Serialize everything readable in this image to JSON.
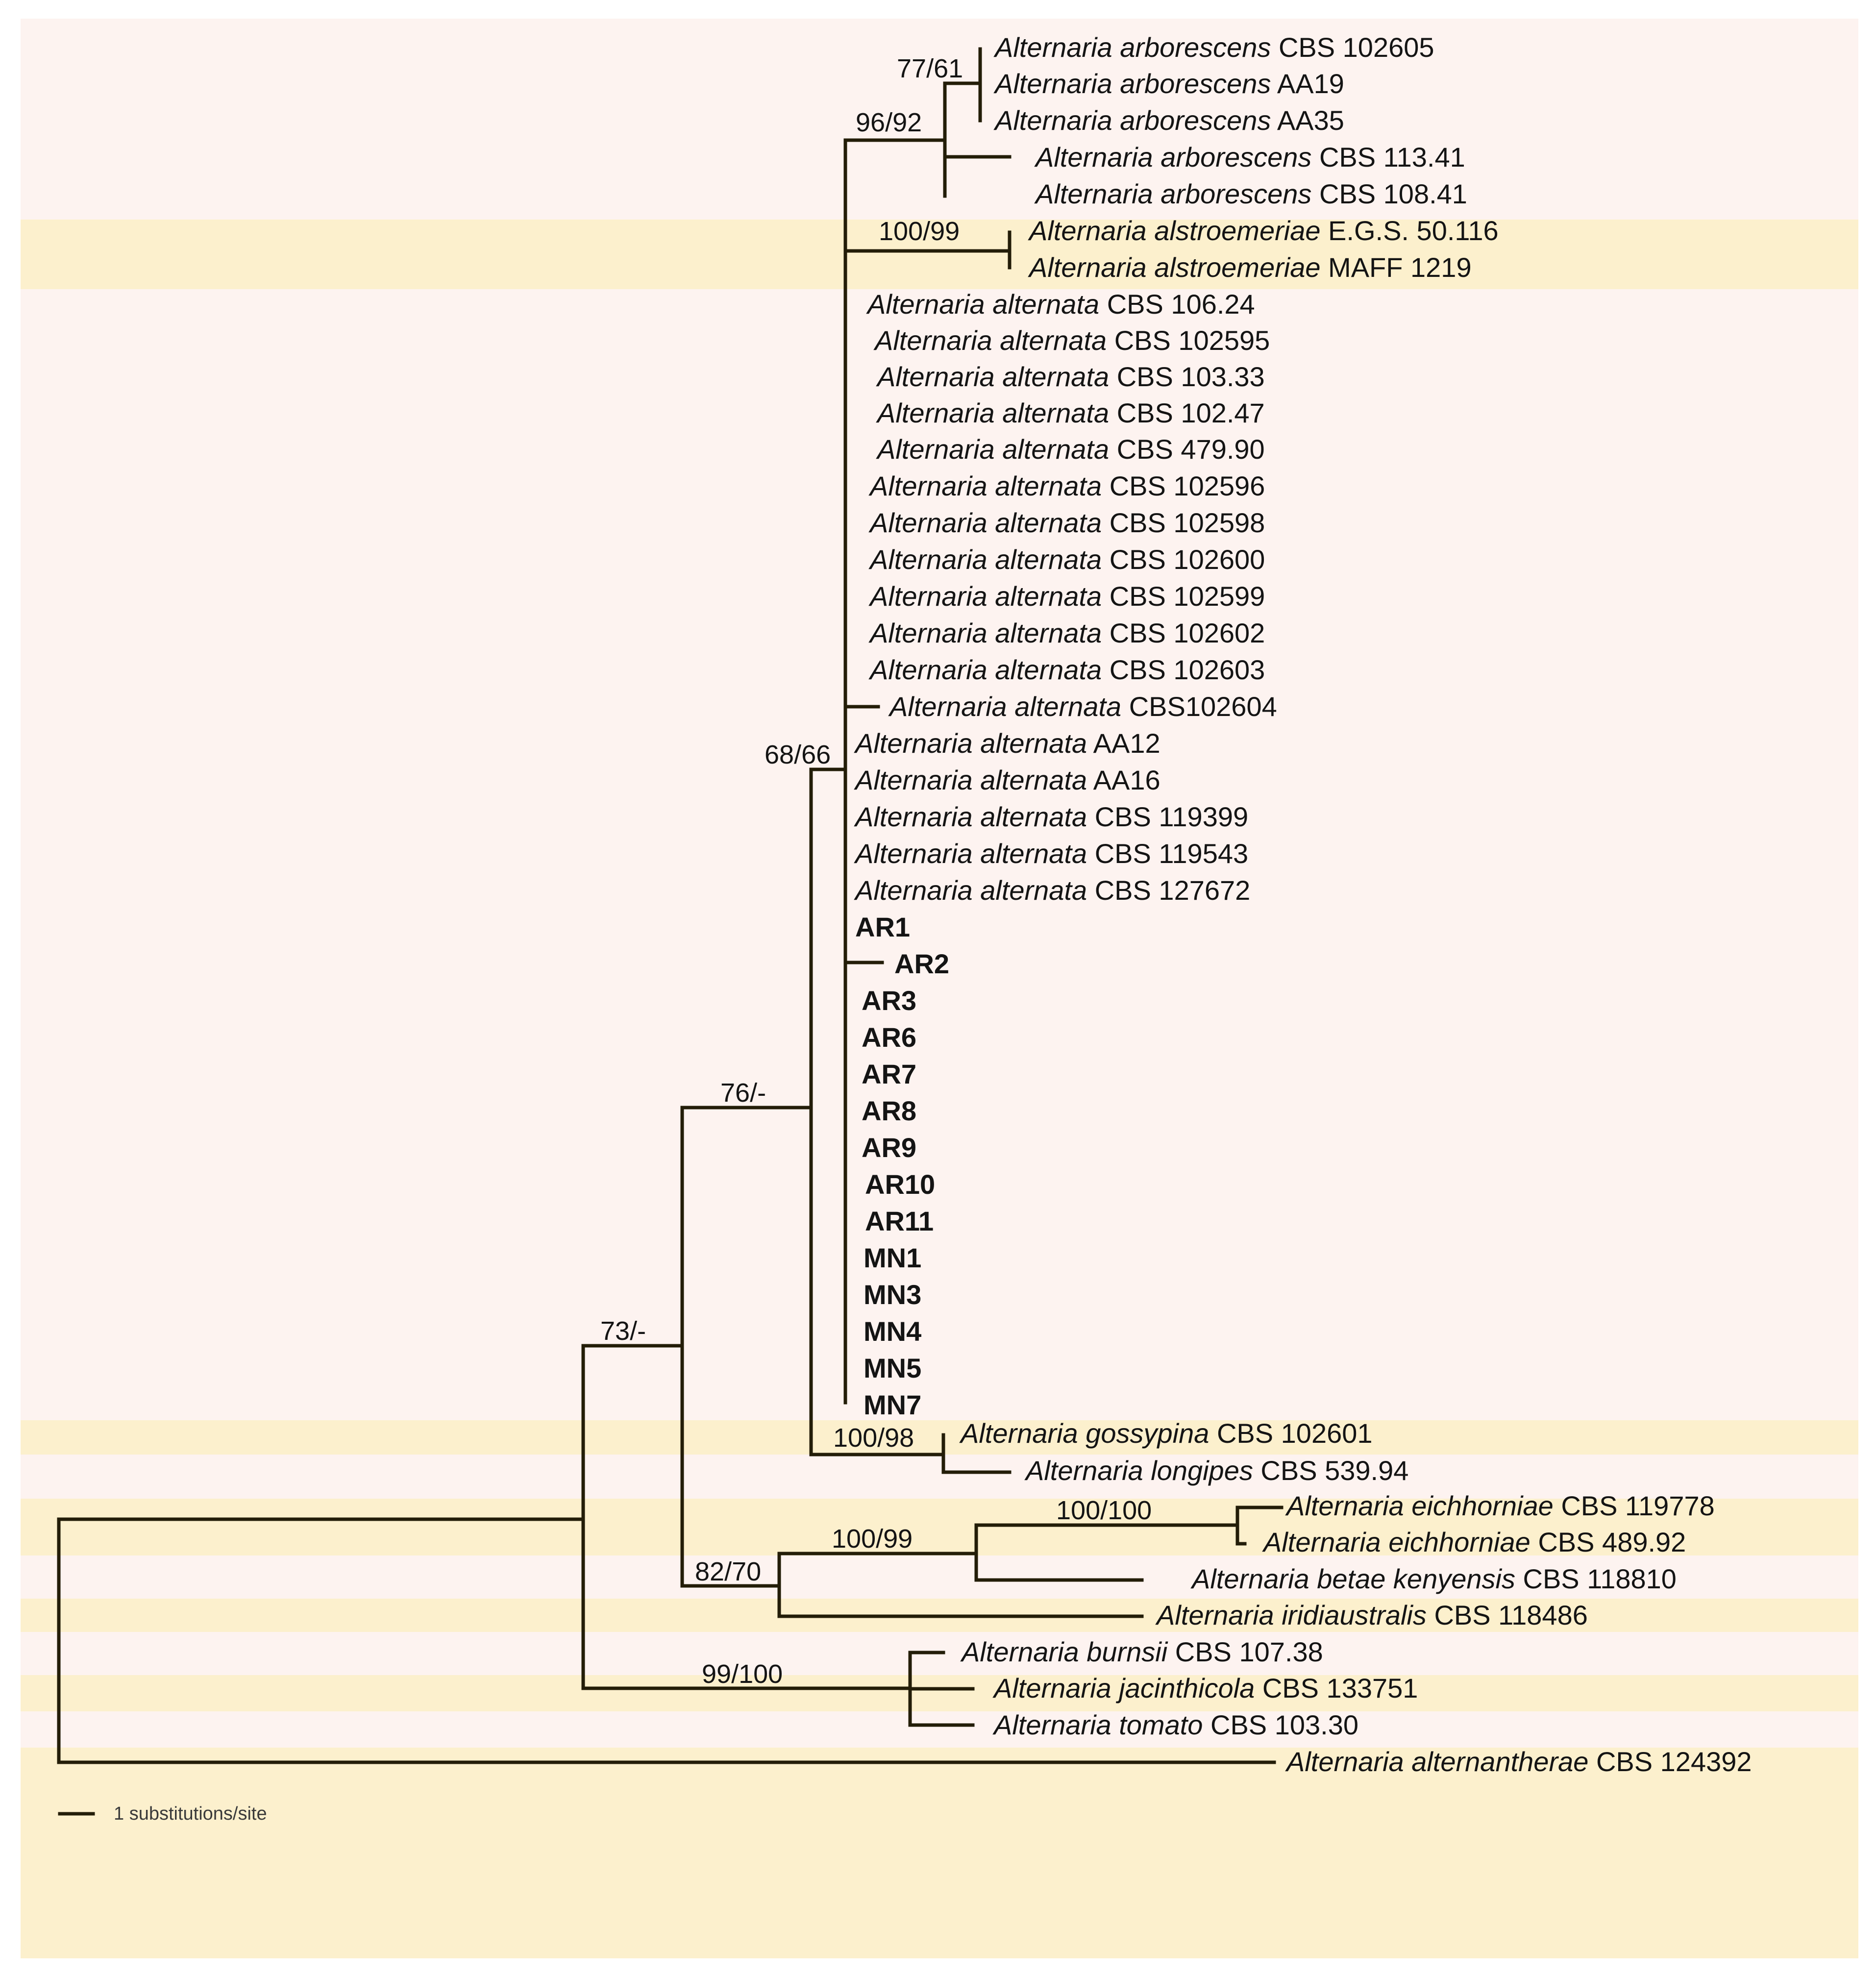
{
  "colors": {
    "band_pink": "#fdf3f0",
    "band_yellow": "#fcf0cd",
    "branch": "#231d08",
    "text": "#141414"
  },
  "taxa": [
    {
      "id": "t01",
      "species": "Alternaria arborescens",
      "strain": "CBS 102605"
    },
    {
      "id": "t02",
      "species": "Alternaria arborescens",
      "strain": "AA19"
    },
    {
      "id": "t03",
      "species": "Alternaria arborescens",
      "strain": "AA35"
    },
    {
      "id": "t04",
      "species": "Alternaria arborescens",
      "strain": "CBS 113.41"
    },
    {
      "id": "t05",
      "species": "Alternaria arborescens",
      "strain": "CBS 108.41"
    },
    {
      "id": "t06",
      "species": "Alternaria alstroemeriae",
      "strain": "E.G.S. 50.116"
    },
    {
      "id": "t07",
      "species": "Alternaria alstroemeriae",
      "strain": "MAFF 1219"
    },
    {
      "id": "t08",
      "species": "Alternaria alternata",
      "strain": "CBS 106.24"
    },
    {
      "id": "t09",
      "species": "Alternaria alternata",
      "strain": "CBS 102595"
    },
    {
      "id": "t10",
      "species": "Alternaria alternata",
      "strain": "CBS 103.33"
    },
    {
      "id": "t11",
      "species": "Alternaria alternata",
      "strain": "CBS 102.47"
    },
    {
      "id": "t12",
      "species": "Alternaria alternata",
      "strain": "CBS 479.90"
    },
    {
      "id": "t13",
      "species": "Alternaria alternata",
      "strain": "CBS 102596"
    },
    {
      "id": "t14",
      "species": "Alternaria alternata",
      "strain": "CBS 102598"
    },
    {
      "id": "t15",
      "species": "Alternaria alternata",
      "strain": "CBS 102600"
    },
    {
      "id": "t16",
      "species": "Alternaria alternata",
      "strain": "CBS 102599"
    },
    {
      "id": "t17",
      "species": "Alternaria alternata",
      "strain": "CBS 102602"
    },
    {
      "id": "t18",
      "species": "Alternaria alternata",
      "strain": "CBS 102603"
    },
    {
      "id": "t19",
      "species": "Alternaria alternata",
      "strain": "CBS102604"
    },
    {
      "id": "t20",
      "species": "Alternaria alternata",
      "strain": "AA12"
    },
    {
      "id": "t21",
      "species": "Alternaria alternata",
      "strain": "AA16"
    },
    {
      "id": "t22",
      "species": "Alternaria alternata",
      "strain": "CBS 119399"
    },
    {
      "id": "t23",
      "species": "Alternaria alternata",
      "strain": "CBS 119543"
    },
    {
      "id": "t24",
      "species": "Alternaria alternata",
      "strain": "CBS 127672"
    },
    {
      "id": "t25",
      "species": "",
      "strain": "AR1"
    },
    {
      "id": "t26",
      "species": "",
      "strain": "AR2"
    },
    {
      "id": "t27",
      "species": "",
      "strain": "AR3"
    },
    {
      "id": "t28",
      "species": "",
      "strain": "AR6"
    },
    {
      "id": "t29",
      "species": "",
      "strain": "AR7"
    },
    {
      "id": "t30",
      "species": "",
      "strain": "AR8"
    },
    {
      "id": "t31",
      "species": "",
      "strain": "AR9"
    },
    {
      "id": "t32",
      "species": "",
      "strain": "AR10"
    },
    {
      "id": "t33",
      "species": "",
      "strain": "AR11"
    },
    {
      "id": "t34",
      "species": "",
      "strain": "MN1"
    },
    {
      "id": "t35",
      "species": "",
      "strain": "MN3"
    },
    {
      "id": "t36",
      "species": "",
      "strain": "MN4"
    },
    {
      "id": "t37",
      "species": "",
      "strain": "MN5"
    },
    {
      "id": "t38",
      "species": "",
      "strain": "MN7"
    },
    {
      "id": "t39",
      "species": "Alternaria gossypina",
      "strain": "CBS 102601"
    },
    {
      "id": "t40",
      "species": "Alternaria longipes",
      "strain": "CBS 539.94"
    },
    {
      "id": "t41",
      "species": "Alternaria eichhorniae",
      "strain": "CBS 119778"
    },
    {
      "id": "t42",
      "species": "Alternaria eichhorniae",
      "strain": "CBS 489.92"
    },
    {
      "id": "t43",
      "species": "Alternaria betae kenyensis",
      "strain": "CBS 118810"
    },
    {
      "id": "t44",
      "species": "Alternaria iridiaustralis",
      "strain": "CBS 118486"
    },
    {
      "id": "t45",
      "species": "Alternaria burnsii",
      "strain": "CBS 107.38"
    },
    {
      "id": "t46",
      "species": "Alternaria jacinthicola",
      "strain": "CBS 133751"
    },
    {
      "id": "t47",
      "species": "Alternaria tomato",
      "strain": "CBS 103.30"
    },
    {
      "id": "t48",
      "species": "Alternaria alternantherae",
      "strain": "CBS 124392"
    }
  ],
  "support_values": [
    {
      "id": "s01",
      "text": "77/61"
    },
    {
      "id": "s02",
      "text": "96/92"
    },
    {
      "id": "s03",
      "text": "100/99"
    },
    {
      "id": "s04",
      "text": "68/66"
    },
    {
      "id": "s05",
      "text": "76/-"
    },
    {
      "id": "s06",
      "text": "73/-"
    },
    {
      "id": "s07",
      "text": "100/98"
    },
    {
      "id": "s08",
      "text": "100/100"
    },
    {
      "id": "s09",
      "text": "100/99"
    },
    {
      "id": "s10",
      "text": "82/70"
    },
    {
      "id": "s11",
      "text": "99/100"
    }
  ],
  "scale_bar": {
    "label": "1 substitutions/site"
  }
}
